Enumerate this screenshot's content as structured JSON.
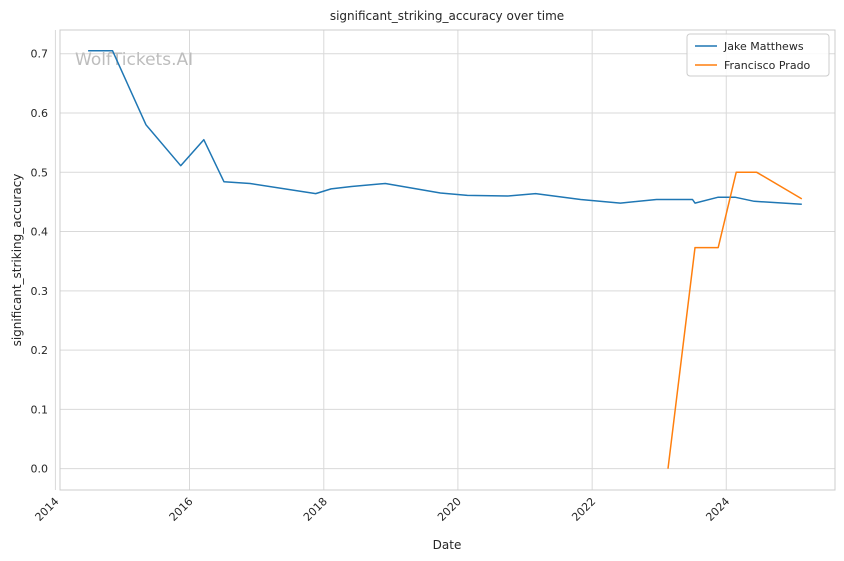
{
  "chart_data": {
    "type": "line",
    "title": "significant_striking_accuracy over time",
    "xlabel": "Date",
    "ylabel": "significant_striking_accuracy",
    "watermark": "WolfTickets.AI",
    "xlim": [
      "2014-01-26",
      "2025-08-15"
    ],
    "ylim": [
      -0.036,
      0.74
    ],
    "x_ticks": [
      "2014",
      "2016",
      "2018",
      "2020",
      "2022",
      "2024"
    ],
    "y_ticks": [
      "0.0",
      "0.1",
      "0.2",
      "0.3",
      "0.4",
      "0.5",
      "0.6",
      "0.7"
    ],
    "grid": true,
    "legend_position": "top-right",
    "series": [
      {
        "name": "Jake Matthews",
        "color": "#1f77b4",
        "x": [
          "2014-06-28",
          "2014-11-08",
          "2015-05-09",
          "2015-11-14",
          "2016-03-19",
          "2016-07-07",
          "2016-11-26",
          "2017-11-18",
          "2018-02-10",
          "2018-06-01",
          "2018-12-02",
          "2019-09-28",
          "2020-02-22",
          "2020-09-27",
          "2021-02-27",
          "2021-10-30",
          "2022-06-04",
          "2022-12-17",
          "2023-07-01",
          "2023-07-15",
          "2023-11-18",
          "2024-02-17",
          "2024-06-01",
          "2025-02-15"
        ],
        "y": [
          0.705,
          0.705,
          0.58,
          0.511,
          0.555,
          0.484,
          0.481,
          0.464,
          0.472,
          0.476,
          0.481,
          0.465,
          0.461,
          0.46,
          0.464,
          0.454,
          0.448,
          0.454,
          0.454,
          0.448,
          0.458,
          0.458,
          0.451,
          0.446
        ]
      },
      {
        "name": "Francisco Prado",
        "color": "#ff7f0e",
        "x": [
          "2023-02-18",
          "2023-07-15",
          "2023-11-18",
          "2024-02-24",
          "2024-06-15",
          "2025-02-15"
        ],
        "y": [
          0.0,
          0.373,
          0.373,
          0.5,
          0.5,
          0.455
        ]
      }
    ]
  }
}
